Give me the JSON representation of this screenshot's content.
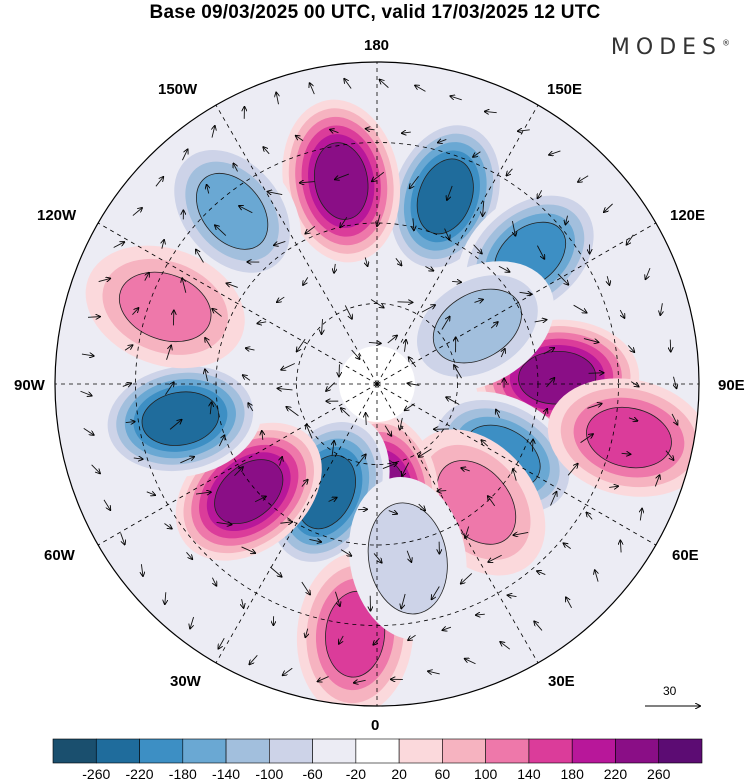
{
  "title": "Base 09/03/2025 00 UTC, valid 17/03/2025 12 UTC",
  "brand": "MODES",
  "brand_mark": "®",
  "longitude_labels": {
    "n": "180",
    "s": "0",
    "w": "90W",
    "e": "90E",
    "nw1": "150W",
    "nw2": "120W",
    "ne1": "150E",
    "ne2": "120E",
    "sw1": "60W",
    "sw2": "30W",
    "se1": "60E",
    "se2": "30E"
  },
  "reference_vector_label": "30",
  "colorbar": {
    "labels": [
      "-260",
      "-220",
      "-180",
      "-140",
      "-100",
      "-60",
      "-20",
      "20",
      "60",
      "100",
      "140",
      "180",
      "220",
      "260"
    ],
    "colors": [
      "#1a4f6e",
      "#1f6c9c",
      "#3d8fc4",
      "#6aa8d3",
      "#a2bfdd",
      "#cdd3e8",
      "#ececf4",
      "#ffffff",
      "#fbd9dc",
      "#f6b3c0",
      "#ee78aa",
      "#db3c9a",
      "#b8179a",
      "#8a0e86",
      "#5c0c73"
    ]
  },
  "anomalies": [
    {
      "lon": 160,
      "r": 0.62,
      "v": -220
    },
    {
      "lon": -170,
      "r": 0.64,
      "v": 220
    },
    {
      "lon": -140,
      "r": 0.7,
      "v": -160
    },
    {
      "lon": 130,
      "r": 0.62,
      "v": -200
    },
    {
      "lon": 92,
      "r": 0.56,
      "v": 220
    },
    {
      "lon": 60,
      "r": 0.45,
      "v": -180
    },
    {
      "lon": 40,
      "r": 0.48,
      "v": 100
    },
    {
      "lon": 2,
      "r": 0.35,
      "v": 230
    },
    {
      "lon": -25,
      "r": 0.37,
      "v": -240
    },
    {
      "lon": -50,
      "r": 0.52,
      "v": 220
    },
    {
      "lon": -80,
      "r": 0.62,
      "v": -240
    },
    {
      "lon": -110,
      "r": 0.7,
      "v": 100
    },
    {
      "lon": 120,
      "r": 0.36,
      "v": -100
    },
    {
      "lon": 78,
      "r": 0.8,
      "v": 160
    },
    {
      "lon": -5,
      "r": 0.78,
      "v": 140
    },
    {
      "lon": 10,
      "r": 0.55,
      "v": -80
    }
  ]
}
